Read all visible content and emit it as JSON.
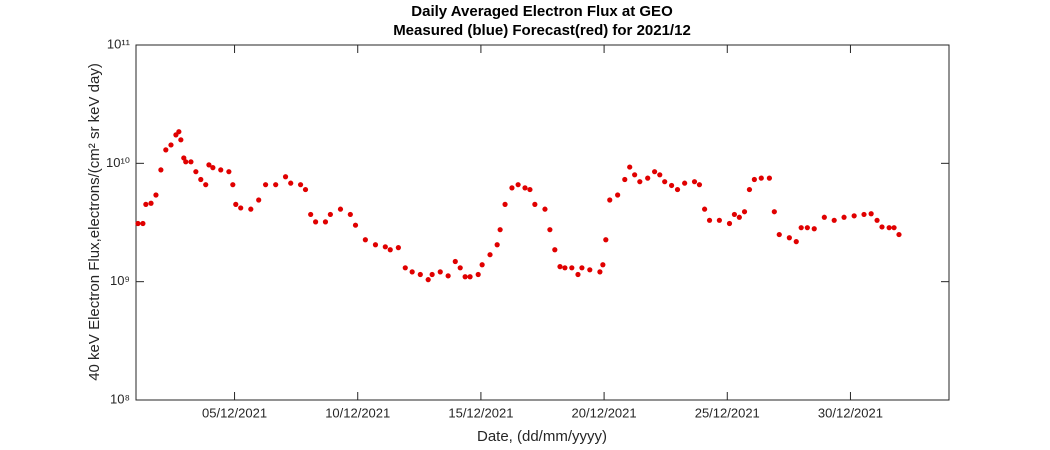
{
  "chart_data": {
    "type": "scatter",
    "title": "Daily Averaged Electron Flux at GEO",
    "subtitle": "Measured (blue) Forecast(red) for 2021/12",
    "x_label": "Date, (dd/mm/yyyy)",
    "y_label": "40 keV Electron Flux,electrons/(cm² sr keV day)",
    "color": "#e00000",
    "log_y": true,
    "xlim": [
      1,
      34
    ],
    "xticks": [
      {
        "value": 5,
        "label": "05/12/2021"
      },
      {
        "value": 10,
        "label": "10/12/2021"
      },
      {
        "value": 15,
        "label": "15/12/2021"
      },
      {
        "value": 20,
        "label": "20/12/2021"
      },
      {
        "value": 25,
        "label": "25/12/2021"
      },
      {
        "value": 30,
        "label": "30/12/2021"
      }
    ],
    "ylim": [
      100000000,
      100000000000
    ],
    "yticks": [
      {
        "value": 100000000,
        "label": "10⁸"
      },
      {
        "value": 1000000000,
        "label": "10⁹"
      },
      {
        "value": 10000000000,
        "label": "10¹⁰"
      },
      {
        "value": 100000000000,
        "label": "10¹¹"
      }
    ],
    "x": [
      1.08,
      1.28,
      1.4,
      1.61,
      1.81,
      2.01,
      2.21,
      2.42,
      2.62,
      2.74,
      2.82,
      2.94,
      3.02,
      3.23,
      3.43,
      3.63,
      3.83,
      3.96,
      4.12,
      4.44,
      4.77,
      4.93,
      5.05,
      5.25,
      5.66,
      5.98,
      6.26,
      6.67,
      7.07,
      7.28,
      7.68,
      7.88,
      8.09,
      8.29,
      8.69,
      8.89,
      9.3,
      9.7,
      9.91,
      10.31,
      10.72,
      11.12,
      11.32,
      11.65,
      11.93,
      12.21,
      12.54,
      12.86,
      13.02,
      13.35,
      13.67,
      13.96,
      14.16,
      14.36,
      14.56,
      14.89,
      15.05,
      15.37,
      15.66,
      15.78,
      15.98,
      16.26,
      16.51,
      16.79,
      16.99,
      17.19,
      17.6,
      17.8,
      18.0,
      18.21,
      18.41,
      18.69,
      18.94,
      19.1,
      19.42,
      19.83,
      19.95,
      20.07,
      20.23,
      20.55,
      20.84,
      21.04,
      21.24,
      21.45,
      21.77,
      22.05,
      22.26,
      22.46,
      22.74,
      22.98,
      23.27,
      23.67,
      23.87,
      24.08,
      24.28,
      24.68,
      25.09,
      25.29,
      25.49,
      25.7,
      25.9,
      26.1,
      26.38,
      26.71,
      26.91,
      27.11,
      27.52,
      27.8,
      28.0,
      28.25,
      28.53,
      28.94,
      29.34,
      29.74,
      30.15,
      30.55,
      30.84,
      31.08,
      31.28,
      31.57,
      31.77,
      31.97
    ],
    "values": [
      3100000000,
      3100000000,
      4500000000,
      4600000000,
      5400000000,
      8800000000,
      13000000000,
      14300000000,
      17400000000,
      18500000000,
      15800000000,
      11100000000,
      10300000000,
      10300000000,
      8500000000,
      7300000000,
      6600000000,
      9700000000,
      9200000000,
      8800000000,
      8500000000,
      6600000000,
      4500000000,
      4200000000,
      4100000000,
      4900000000,
      6600000000,
      6600000000,
      7700000000,
      6800000000,
      6600000000,
      6000000000,
      3700000000,
      3200000000,
      3200000000,
      3700000000,
      4100000000,
      3700000000,
      3000000000,
      2260000000,
      2050000000,
      1970000000,
      1860000000,
      1940000000,
      1310000000,
      1210000000,
      1150000000,
      1040000000,
      1150000000,
      1210000000,
      1120000000,
      1480000000,
      1310000000,
      1100000000,
      1100000000,
      1150000000,
      1390000000,
      1690000000,
      2050000000,
      2750000000,
      4500000000,
      6200000000,
      6600000000,
      6200000000,
      6000000000,
      4500000000,
      4100000000,
      2750000000,
      1860000000,
      1340000000,
      1310000000,
      1310000000,
      1150000000,
      1310000000,
      1260000000,
      1210000000,
      1390000000,
      2260000000,
      4900000000,
      5400000000,
      7300000000,
      9300000000,
      8000000000,
      7000000000,
      7500000000,
      8500000000,
      8000000000,
      7000000000,
      6500000000,
      6000000000,
      6800000000,
      7000000000,
      6600000000,
      4100000000,
      3300000000,
      3300000000,
      3100000000,
      3700000000,
      3500000000,
      3900000000,
      6000000000,
      7300000000,
      7500000000,
      7500000000,
      3900000000,
      2500000000,
      2350000000,
      2180000000,
      2860000000,
      2860000000,
      2800000000,
      3500000000,
      3300000000,
      3500000000,
      3600000000,
      3700000000,
      3750000000,
      3300000000,
      2900000000,
      2860000000,
      2860000000,
      2500000000
    ]
  }
}
